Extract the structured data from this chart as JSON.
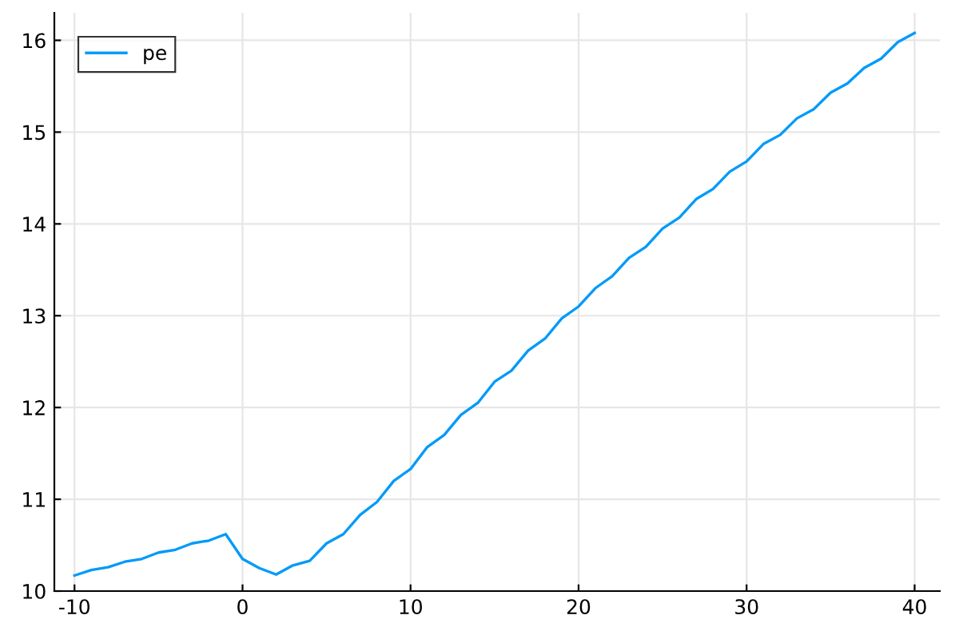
{
  "chart_data": {
    "type": "line",
    "x": [
      -10,
      -9,
      -8,
      -7,
      -6,
      -5,
      -4,
      -3,
      -2,
      -1,
      0,
      1,
      2,
      3,
      4,
      5,
      6,
      7,
      8,
      9,
      10,
      11,
      12,
      13,
      14,
      15,
      16,
      17,
      18,
      19,
      20,
      21,
      22,
      23,
      24,
      25,
      26,
      27,
      28,
      29,
      30,
      31,
      32,
      33,
      34,
      35,
      36,
      37,
      38,
      39,
      40
    ],
    "series": [
      {
        "name": "pe",
        "color": "#009af9",
        "values": [
          10.17,
          10.23,
          10.26,
          10.32,
          10.35,
          10.42,
          10.45,
          10.52,
          10.55,
          10.62,
          10.35,
          10.25,
          10.18,
          10.28,
          10.33,
          10.52,
          10.62,
          10.83,
          10.97,
          11.2,
          11.33,
          11.57,
          11.7,
          11.92,
          12.05,
          12.28,
          12.4,
          12.62,
          12.75,
          12.97,
          13.1,
          13.3,
          13.43,
          13.63,
          13.75,
          13.95,
          14.07,
          14.27,
          14.38,
          14.57,
          14.68,
          14.87,
          14.97,
          15.15,
          15.25,
          15.43,
          15.53,
          15.7,
          15.8,
          15.98,
          16.08
        ]
      }
    ],
    "xlim": [
      -11.2,
      41.5
    ],
    "xticks": [
      -10,
      0,
      10,
      20,
      30,
      40
    ],
    "ylim": [
      10,
      16.3
    ],
    "yticks": [
      10,
      11,
      12,
      13,
      14,
      15,
      16
    ],
    "grid": true,
    "legend": "top left",
    "marker": "none",
    "line_style": "solid"
  }
}
